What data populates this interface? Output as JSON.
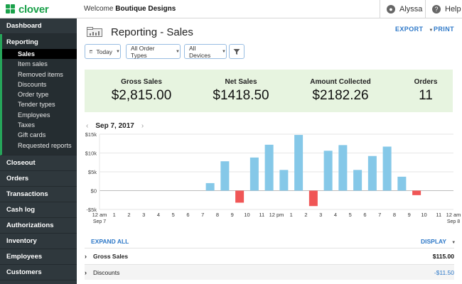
{
  "app": {
    "logo": "clover"
  },
  "header": {
    "welcome_prefix": "Welcome",
    "merchant": "Boutique Designs",
    "user": "Alyssa",
    "help": "Help"
  },
  "sidebar": {
    "top_items": [
      "Dashboard"
    ],
    "reporting": {
      "label": "Reporting",
      "items": [
        "Sales",
        "Item sales",
        "Removed items",
        "Discounts",
        "Order type",
        "Tender types",
        "Employees",
        "Taxes",
        "Gift cards",
        "Requested reports"
      ],
      "active": "Sales"
    },
    "bottom_items": [
      "Closeout",
      "Orders",
      "Transactions",
      "Cash log",
      "Authorizations",
      "Inventory",
      "Employees",
      "Customers"
    ]
  },
  "page": {
    "title": "Reporting - Sales",
    "export": "EXPORT",
    "print": "PRINT",
    "filters": [
      "Today",
      "All Order Types",
      "All Devices"
    ]
  },
  "summary": {
    "gross_sales_label": "Gross Sales",
    "gross_sales": "$2,815.00",
    "net_sales_label": "Net Sales",
    "net_sales": "$1418.50",
    "amount_collected_label": "Amount Collected",
    "amount_collected": "$2182.26",
    "orders_label": "Orders",
    "orders": "11"
  },
  "date": "Sep 7, 2017",
  "chart_data": {
    "type": "bar",
    "ylim": [
      -5000,
      15000
    ],
    "y_ticks": [
      15000,
      10000,
      5000,
      0,
      -5000
    ],
    "y_tick_labels": [
      "$15k",
      "$10k",
      "$5k",
      "$0",
      "-$5k"
    ],
    "x_tick_labels": [
      "12 am",
      "1",
      "2",
      "3",
      "4",
      "5",
      "6",
      "7",
      "8",
      "9",
      "10",
      "11",
      "12 pm",
      "1",
      "2",
      "3",
      "4",
      "5",
      "6",
      "7",
      "8",
      "9",
      "10",
      "11",
      "12 am"
    ],
    "x_tick_sublabels": [
      "Sep 7",
      "",
      "",
      "",
      "",
      "",
      "",
      "",
      "",
      "",
      "",
      "",
      "",
      "",
      "",
      "",
      "",
      "",
      "",
      "",
      "",
      "",
      "",
      "",
      "Sep 8"
    ],
    "categories": [
      "12 am",
      "1",
      "2",
      "3",
      "4",
      "5",
      "6",
      "7",
      "8",
      "9",
      "10",
      "11",
      "12 pm",
      "1",
      "2",
      "3",
      "4",
      "5",
      "6",
      "7",
      "8",
      "9",
      "10",
      "11"
    ],
    "values": [
      0,
      0,
      0,
      0,
      0,
      0,
      0,
      2000,
      7800,
      -3200,
      8800,
      12200,
      5500,
      14800,
      -4100,
      10600,
      12100,
      5500,
      9200,
      11700,
      3700,
      -1200,
      0,
      0
    ],
    "positive_color": "#85c8e8",
    "negative_color": "#f05656",
    "grid": true
  },
  "details": {
    "expand_all": "EXPAND ALL",
    "display": "DISPLAY",
    "rows": [
      {
        "label": "Gross Sales",
        "value": "$115.00",
        "color": "#111111"
      },
      {
        "label": "Discounts",
        "value": "-$11.50",
        "color": "#2d78c8"
      }
    ]
  }
}
